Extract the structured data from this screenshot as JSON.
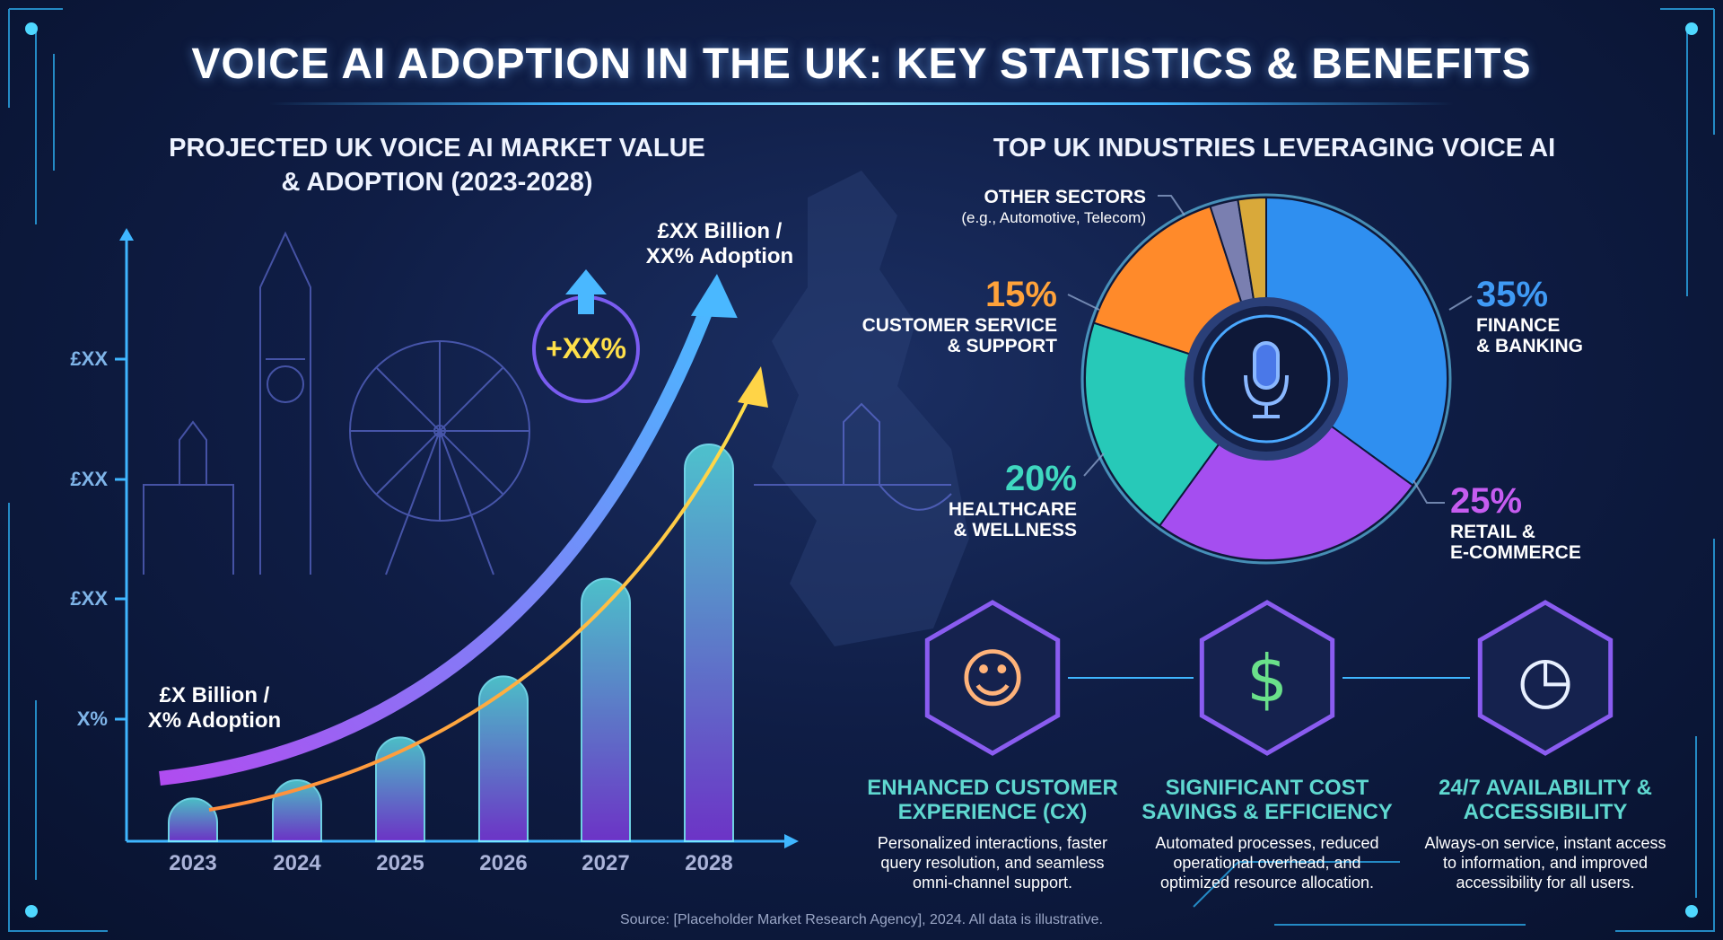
{
  "title": "VOICE AI ADOPTION IN THE UK: KEY STATISTICS & BENEFITS",
  "left_panel": {
    "subtitle_line1": "PROJECTED UK VOICE AI MARKET VALUE",
    "subtitle_line2": "& ADOPTION (2023-2028)",
    "start_annotation": [
      "£X Billion /",
      "X% Adoption"
    ],
    "end_annotation": [
      "£XX Billion /",
      "XX% Adoption"
    ],
    "growth_badge": "+XX%"
  },
  "right_panel": {
    "subtitle": "TOP UK INDUSTRIES LEVERAGING VOICE AI",
    "center_icon": "microphone-icon"
  },
  "chart_data": [
    {
      "type": "bar",
      "title": "PROJECTED UK VOICE AI MARKET VALUE & ADOPTION (2023-2028)",
      "categories": [
        "2023",
        "2024",
        "2025",
        "2026",
        "2027",
        "2028"
      ],
      "values": [
        7,
        10,
        17,
        27,
        43,
        65
      ],
      "value_note_unlabeled": true,
      "y_tick_labels": [
        "X%",
        "£XX",
        "£XX",
        "£XX"
      ],
      "ylim": [
        0,
        100
      ],
      "trend_lines": [
        "market value (blue arrow)",
        "adoption (yellow arrow)"
      ],
      "grid": false,
      "colors": {
        "bar_top": "#4fe3e8",
        "bar_bottom": "#8a4cf0",
        "arrow_blue": "#4aa8ff",
        "arrow_yellow": "#ffd447"
      }
    },
    {
      "type": "pie",
      "title": "TOP UK INDUSTRIES LEVERAGING VOICE AI",
      "slices": [
        {
          "label": "FINANCE & BANKING",
          "lines": [
            "FINANCE",
            "& BANKING"
          ],
          "value": 35,
          "display": "35%",
          "color": "#2f8ff0",
          "icons": [
            "coins-icon",
            "bank-icon"
          ]
        },
        {
          "label": "RETAIL & E-COMMERCE",
          "lines": [
            "RETAIL &",
            "E-COMMERCE"
          ],
          "value": 25,
          "display": "25%",
          "color": "#a54ef0",
          "icons": [
            "shopping-cart-icon",
            "smartphone-icon"
          ]
        },
        {
          "label": "HEALTHCARE & WELLNESS",
          "lines": [
            "HEALTHCARE",
            "& WELLNESS"
          ],
          "value": 20,
          "display": "20%",
          "color": "#27c9b8",
          "icons": [
            "heart-cross-icon",
            "stethoscope-icon"
          ]
        },
        {
          "label": "CUSTOMER SERVICE & SUPPORT",
          "lines": [
            "CUSTOMER SERVICE",
            "& SUPPORT"
          ],
          "value": 15,
          "display": "15%",
          "color": "#ff8a2a",
          "icons": [
            "headset-icon"
          ]
        },
        {
          "label": "OTHER SECTORS",
          "lines": [
            "OTHER SECTORS",
            "(e.g., Automotive, Telecom)"
          ],
          "value": null,
          "display": "",
          "color": "#7a7fb0",
          "color2": "#d9a93a",
          "icons": [
            "satellite-icon",
            "car-icon",
            "satellite-dish-icon"
          ]
        }
      ]
    }
  ],
  "benefits": [
    {
      "title": [
        "ENHANCED CUSTOMER",
        "EXPERIENCE (CX)"
      ],
      "desc": [
        "Personalized interactions, faster",
        "query resolution, and seamless",
        "omni-channel support."
      ],
      "icon": "happy-customer-icon"
    },
    {
      "title": [
        "SIGNIFICANT COST",
        "SAVINGS & EFFICIENCY"
      ],
      "desc": [
        "Automated processes, reduced",
        "operational overhead, and",
        "optimized resource allocation."
      ],
      "icon": "money-savings-icon"
    },
    {
      "title": [
        "24/7 AVAILABILITY &",
        "ACCESSIBILITY"
      ],
      "desc": [
        "Always-on service, instant access",
        "to information, and improved",
        "accessibility for all users."
      ],
      "icon": "clock-calendar-icon"
    }
  ],
  "source": "Source: [Placeholder Market Research Agency], 2024. All data is illustrative."
}
